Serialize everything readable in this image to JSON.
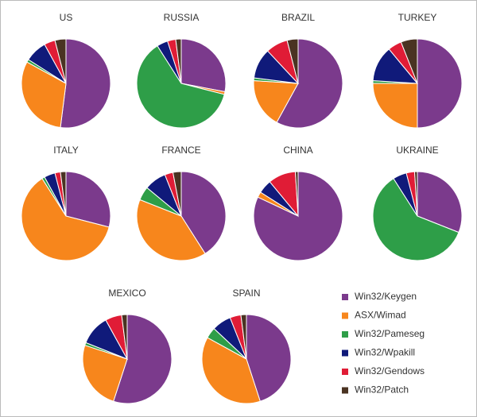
{
  "legend": {
    "categories": [
      "Win32/Keygen",
      "ASX/Wimad",
      "Win32/Pameseg",
      "Win32/Wpakill",
      "Win32/Gendows",
      "Win32/Patch"
    ],
    "colors": [
      "#7b3a8c",
      "#f7861c",
      "#2e9e48",
      "#101a7a",
      "#e01c36",
      "#4a3322"
    ]
  },
  "chart_data": [
    {
      "type": "pie",
      "title": "US",
      "values": [
        52,
        31,
        1,
        8,
        4,
        4
      ]
    },
    {
      "type": "pie",
      "title": "RUSSIA",
      "values": [
        28,
        1,
        62,
        4,
        3,
        2
      ]
    },
    {
      "type": "pie",
      "title": "BRAZIL",
      "values": [
        58,
        18,
        1,
        11,
        8,
        4
      ]
    },
    {
      "type": "pie",
      "title": "TURKEY",
      "values": [
        50,
        25,
        1,
        13,
        5,
        6
      ]
    },
    {
      "type": "pie",
      "title": "ITALY",
      "values": [
        29,
        62,
        1,
        4,
        2,
        2
      ]
    },
    {
      "type": "pie",
      "title": "FRANCE",
      "values": [
        41,
        40,
        5,
        8,
        3,
        3
      ]
    },
    {
      "type": "pie",
      "title": "CHINA",
      "values": [
        82,
        2,
        0,
        5,
        10,
        1
      ]
    },
    {
      "type": "pie",
      "title": "UKRAINE",
      "values": [
        31,
        0,
        60,
        5,
        3,
        1
      ]
    },
    {
      "type": "pie",
      "title": "MEXICO",
      "values": [
        55,
        25,
        1,
        11,
        6,
        2
      ]
    },
    {
      "type": "pie",
      "title": "SPAIN",
      "values": [
        45,
        38,
        4,
        7,
        4,
        2
      ]
    }
  ]
}
